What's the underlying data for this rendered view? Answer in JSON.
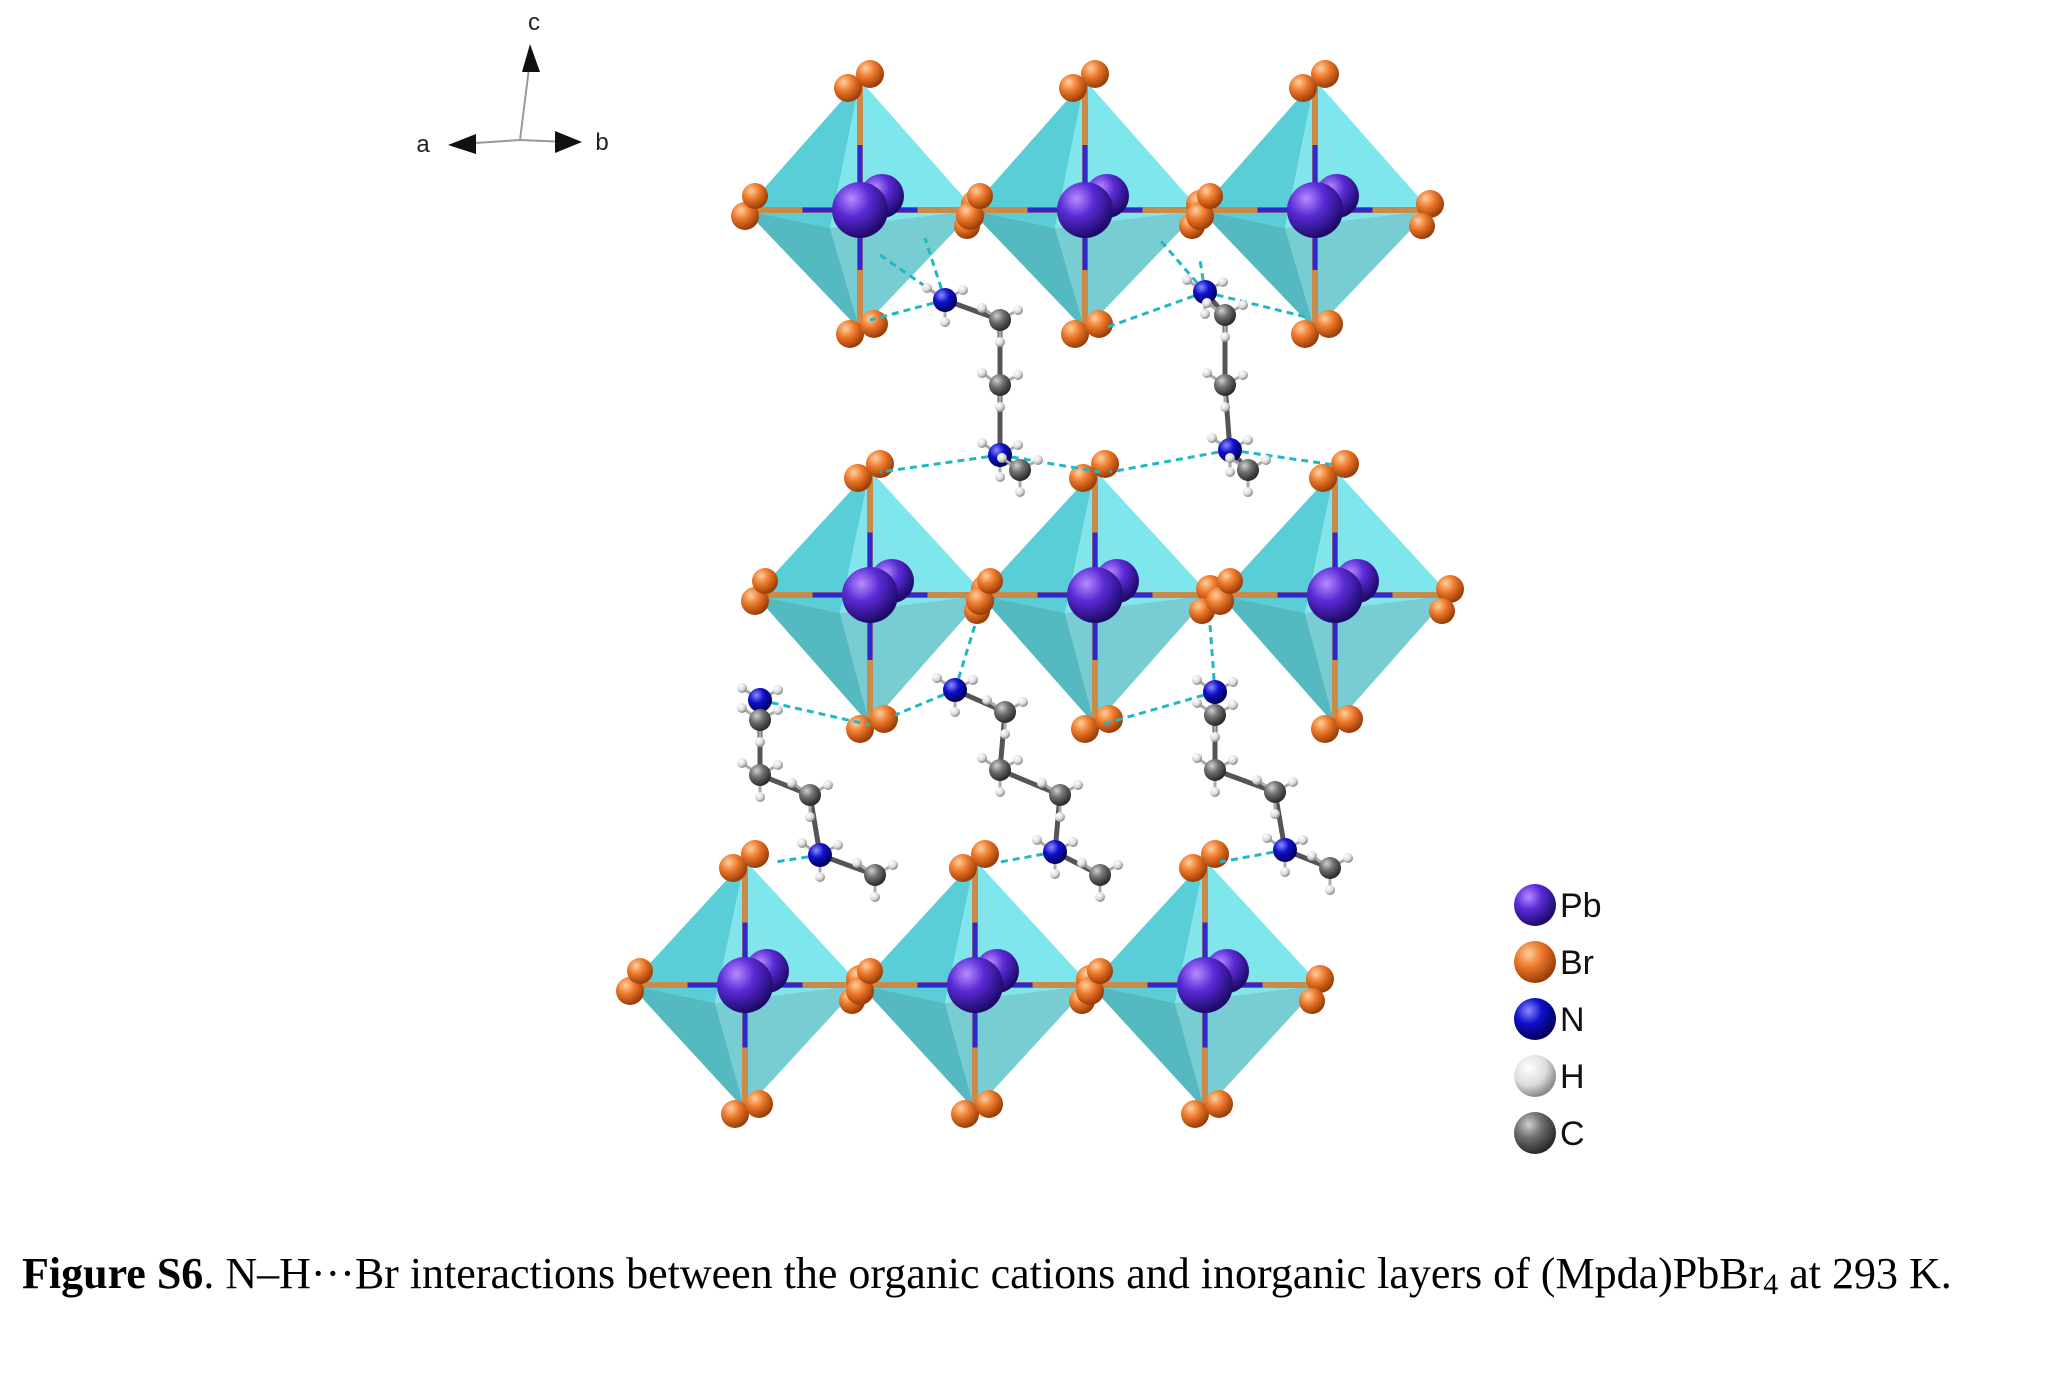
{
  "axes": {
    "a_label": "a",
    "b_label": "b",
    "c_label": "c"
  },
  "legend": {
    "items": [
      {
        "label": "Pb",
        "color": "#6a20d0"
      },
      {
        "label": "Br",
        "color": "#e8772e"
      },
      {
        "label": "N",
        "color": "#1414d2"
      },
      {
        "label": "H",
        "color": "#dddddd"
      },
      {
        "label": "C",
        "color": "#6e6e6e"
      }
    ]
  },
  "caption": {
    "label": "Figure S6",
    "text_before": ". N–H···Br interactions between the organic cations and inorganic layers of (Mpda)PbBr",
    "subscript": "4",
    "text_after": " at 293 K."
  },
  "colors": {
    "octahedron_fill": "#3cc6cf",
    "hbond": "#1fb8c4",
    "bond_orange": "#c98a4a"
  }
}
